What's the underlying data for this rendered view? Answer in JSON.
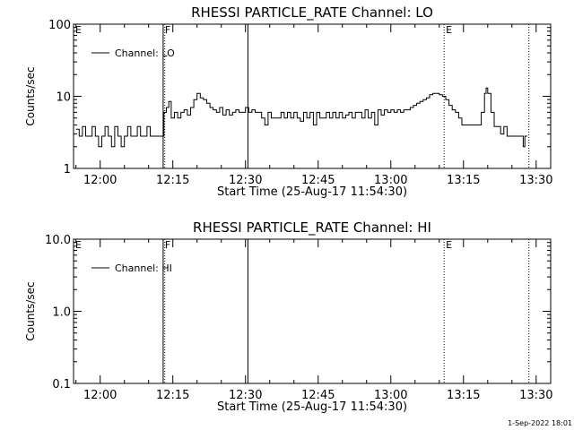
{
  "footer": {
    "date": "1-Sep-2022 18:01"
  },
  "chart_data": [
    {
      "type": "line",
      "title": "RHESSI PARTICLE_RATE Channel: LO",
      "xlabel": "Start Time (25-Aug-17 11:54:30)",
      "ylabel": "Counts/sec",
      "yscale": "log",
      "ylim": [
        1,
        100
      ],
      "xlim": [
        "11:54:30",
        "13:33:00"
      ],
      "xticks": [
        "12:00",
        "12:15",
        "12:30",
        "12:45",
        "13:00",
        "13:15",
        "13:30"
      ],
      "yticks": [
        "1",
        "10",
        "100"
      ],
      "legend": {
        "label": "Channel: LO",
        "position": "top-left"
      },
      "markers": [
        {
          "time": "11:54:30",
          "label": "E",
          "style": "dotted"
        },
        {
          "time": "12:13:00",
          "label": "F",
          "style": "solid"
        },
        {
          "time": "12:13:20",
          "label": "",
          "style": "dotted"
        },
        {
          "time": "12:30:30",
          "label": "",
          "style": "solid"
        },
        {
          "time": "13:11:00",
          "label": "E",
          "style": "dotted"
        },
        {
          "time": "13:28:30",
          "label": "",
          "style": "dotted"
        }
      ],
      "series": [
        {
          "name": "Channel: LO",
          "points": [
            [
              "11:55:00",
              3.5
            ],
            [
              "11:55:40",
              2.8
            ],
            [
              "11:56:20",
              3.8
            ],
            [
              "11:57:00",
              2.8
            ],
            [
              "11:57:40",
              2.8
            ],
            [
              "11:58:20",
              3.8
            ],
            [
              "11:59:00",
              2.8
            ],
            [
              "11:59:40",
              2.0
            ],
            [
              "12:00:20",
              2.8
            ],
            [
              "12:01:00",
              3.8
            ],
            [
              "12:01:40",
              2.8
            ],
            [
              "12:02:20",
              2.0
            ],
            [
              "12:03:00",
              3.8
            ],
            [
              "12:03:40",
              2.8
            ],
            [
              "12:04:20",
              2.0
            ],
            [
              "12:05:00",
              2.8
            ],
            [
              "12:05:40",
              3.8
            ],
            [
              "12:06:20",
              2.8
            ],
            [
              "12:07:00",
              2.8
            ],
            [
              "12:07:40",
              3.8
            ],
            [
              "12:08:20",
              2.8
            ],
            [
              "12:09:00",
              2.8
            ],
            [
              "12:09:40",
              3.8
            ],
            [
              "12:10:20",
              2.8
            ],
            [
              "12:11:00",
              2.8
            ],
            [
              "12:11:40",
              2.8
            ],
            [
              "12:12:20",
              2.8
            ],
            [
              "12:12:50",
              2.8
            ],
            [
              "12:13:10",
              6.0
            ],
            [
              "12:13:40",
              7.0
            ],
            [
              "12:14:10",
              8.5
            ],
            [
              "12:14:40",
              5.0
            ],
            [
              "12:15:20",
              6.0
            ],
            [
              "12:16:00",
              5.0
            ],
            [
              "12:16:40",
              6.0
            ],
            [
              "12:17:20",
              6.5
            ],
            [
              "12:18:00",
              5.5
            ],
            [
              "12:18:40",
              7.0
            ],
            [
              "12:19:20",
              9.0
            ],
            [
              "12:20:00",
              11.0
            ],
            [
              "12:20:40",
              9.5
            ],
            [
              "12:21:20",
              9.0
            ],
            [
              "12:22:00",
              8.0
            ],
            [
              "12:22:40",
              7.0
            ],
            [
              "12:23:20",
              6.5
            ],
            [
              "12:24:00",
              6.0
            ],
            [
              "12:24:40",
              7.0
            ],
            [
              "12:25:20",
              5.5
            ],
            [
              "12:26:00",
              6.5
            ],
            [
              "12:26:40",
              5.5
            ],
            [
              "12:27:20",
              6.0
            ],
            [
              "12:28:00",
              6.5
            ],
            [
              "12:28:40",
              6.0
            ],
            [
              "12:29:20",
              6.0
            ],
            [
              "12:30:00",
              7.0
            ],
            [
              "12:30:40",
              6.0
            ],
            [
              "12:31:20",
              6.5
            ],
            [
              "12:32:00",
              6.0
            ],
            [
              "12:32:40",
              6.0
            ],
            [
              "12:33:20",
              5.0
            ],
            [
              "12:34:00",
              4.0
            ],
            [
              "12:34:40",
              6.0
            ],
            [
              "12:35:20",
              5.0
            ],
            [
              "12:36:00",
              5.0
            ],
            [
              "12:36:40",
              5.0
            ],
            [
              "12:37:20",
              6.0
            ],
            [
              "12:38:00",
              5.0
            ],
            [
              "12:38:40",
              6.0
            ],
            [
              "12:39:20",
              5.0
            ],
            [
              "12:40:00",
              6.0
            ],
            [
              "12:40:40",
              5.0
            ],
            [
              "12:41:20",
              4.5
            ],
            [
              "12:42:00",
              6.0
            ],
            [
              "12:42:40",
              5.0
            ],
            [
              "12:43:20",
              6.0
            ],
            [
              "12:44:00",
              4.0
            ],
            [
              "12:44:40",
              6.0
            ],
            [
              "12:45:20",
              5.0
            ],
            [
              "12:46:00",
              5.0
            ],
            [
              "12:46:40",
              6.0
            ],
            [
              "12:47:20",
              5.0
            ],
            [
              "12:48:00",
              6.0
            ],
            [
              "12:48:40",
              5.0
            ],
            [
              "12:49:20",
              6.0
            ],
            [
              "12:50:00",
              5.0
            ],
            [
              "12:50:40",
              5.5
            ],
            [
              "12:51:20",
              6.0
            ],
            [
              "12:52:00",
              5.0
            ],
            [
              "12:52:40",
              6.0
            ],
            [
              "12:53:20",
              6.0
            ],
            [
              "12:54:00",
              5.0
            ],
            [
              "12:54:40",
              6.5
            ],
            [
              "12:55:20",
              5.0
            ],
            [
              "12:56:00",
              6.0
            ],
            [
              "12:56:40",
              4.0
            ],
            [
              "12:57:20",
              6.5
            ],
            [
              "12:58:00",
              5.5
            ],
            [
              "12:58:40",
              6.5
            ],
            [
              "12:59:20",
              6.0
            ],
            [
              "13:00:00",
              6.5
            ],
            [
              "13:00:40",
              6.0
            ],
            [
              "13:01:20",
              6.5
            ],
            [
              "13:02:00",
              6.0
            ],
            [
              "13:02:40",
              6.5
            ],
            [
              "13:03:20",
              6.5
            ],
            [
              "13:04:00",
              7.0
            ],
            [
              "13:04:40",
              7.5
            ],
            [
              "13:05:20",
              8.0
            ],
            [
              "13:06:00",
              8.5
            ],
            [
              "13:06:40",
              9.0
            ],
            [
              "13:07:20",
              9.5
            ],
            [
              "13:08:00",
              10.5
            ],
            [
              "13:08:40",
              11.0
            ],
            [
              "13:09:20",
              11.0
            ],
            [
              "13:10:00",
              10.5
            ],
            [
              "13:10:40",
              10.0
            ],
            [
              "13:11:20",
              9.0
            ],
            [
              "13:12:00",
              7.5
            ],
            [
              "13:12:40",
              6.5
            ],
            [
              "13:13:20",
              6.0
            ],
            [
              "13:14:00",
              5.0
            ],
            [
              "13:14:40",
              4.0
            ],
            [
              "13:15:20",
              4.0
            ],
            [
              "13:16:00",
              4.0
            ],
            [
              "13:16:40",
              4.0
            ],
            [
              "13:17:20",
              4.0
            ],
            [
              "13:18:00",
              4.0
            ],
            [
              "13:18:40",
              6.0
            ],
            [
              "13:19:20",
              11.0
            ],
            [
              "13:19:40",
              13.0
            ],
            [
              "13:20:00",
              11.0
            ],
            [
              "13:20:40",
              6.0
            ],
            [
              "13:21:20",
              3.8
            ],
            [
              "13:22:00",
              3.8
            ],
            [
              "13:22:40",
              3.0
            ],
            [
              "13:23:20",
              3.8
            ],
            [
              "13:24:00",
              2.8
            ],
            [
              "13:24:40",
              2.8
            ],
            [
              "13:25:20",
              2.8
            ],
            [
              "13:26:00",
              2.8
            ],
            [
              "13:26:40",
              2.8
            ],
            [
              "13:27:20",
              2.0
            ],
            [
              "13:27:40",
              2.8
            ],
            [
              "13:28:10",
              2.8
            ]
          ]
        }
      ]
    },
    {
      "type": "line",
      "title": "RHESSI PARTICLE_RATE Channel: HI",
      "xlabel": "Start Time (25-Aug-17 11:54:30)",
      "ylabel": "Counts/sec",
      "yscale": "log",
      "ylim": [
        0.1,
        10
      ],
      "xlim": [
        "11:54:30",
        "13:33:00"
      ],
      "xticks": [
        "12:00",
        "12:15",
        "12:30",
        "12:45",
        "13:00",
        "13:15",
        "13:30"
      ],
      "yticks": [
        "0.1",
        "1.0",
        "10.0"
      ],
      "legend": {
        "label": "Channel: HI",
        "position": "top-left"
      },
      "markers": [
        {
          "time": "11:54:30",
          "label": "E",
          "style": "dotted"
        },
        {
          "time": "12:13:00",
          "label": "F",
          "style": "solid"
        },
        {
          "time": "12:13:20",
          "label": "",
          "style": "dotted"
        },
        {
          "time": "12:30:30",
          "label": "",
          "style": "solid"
        },
        {
          "time": "13:11:00",
          "label": "E",
          "style": "dotted"
        },
        {
          "time": "13:28:30",
          "label": "",
          "style": "dotted"
        }
      ],
      "series": [
        {
          "name": "Channel: HI",
          "points": []
        }
      ]
    }
  ]
}
